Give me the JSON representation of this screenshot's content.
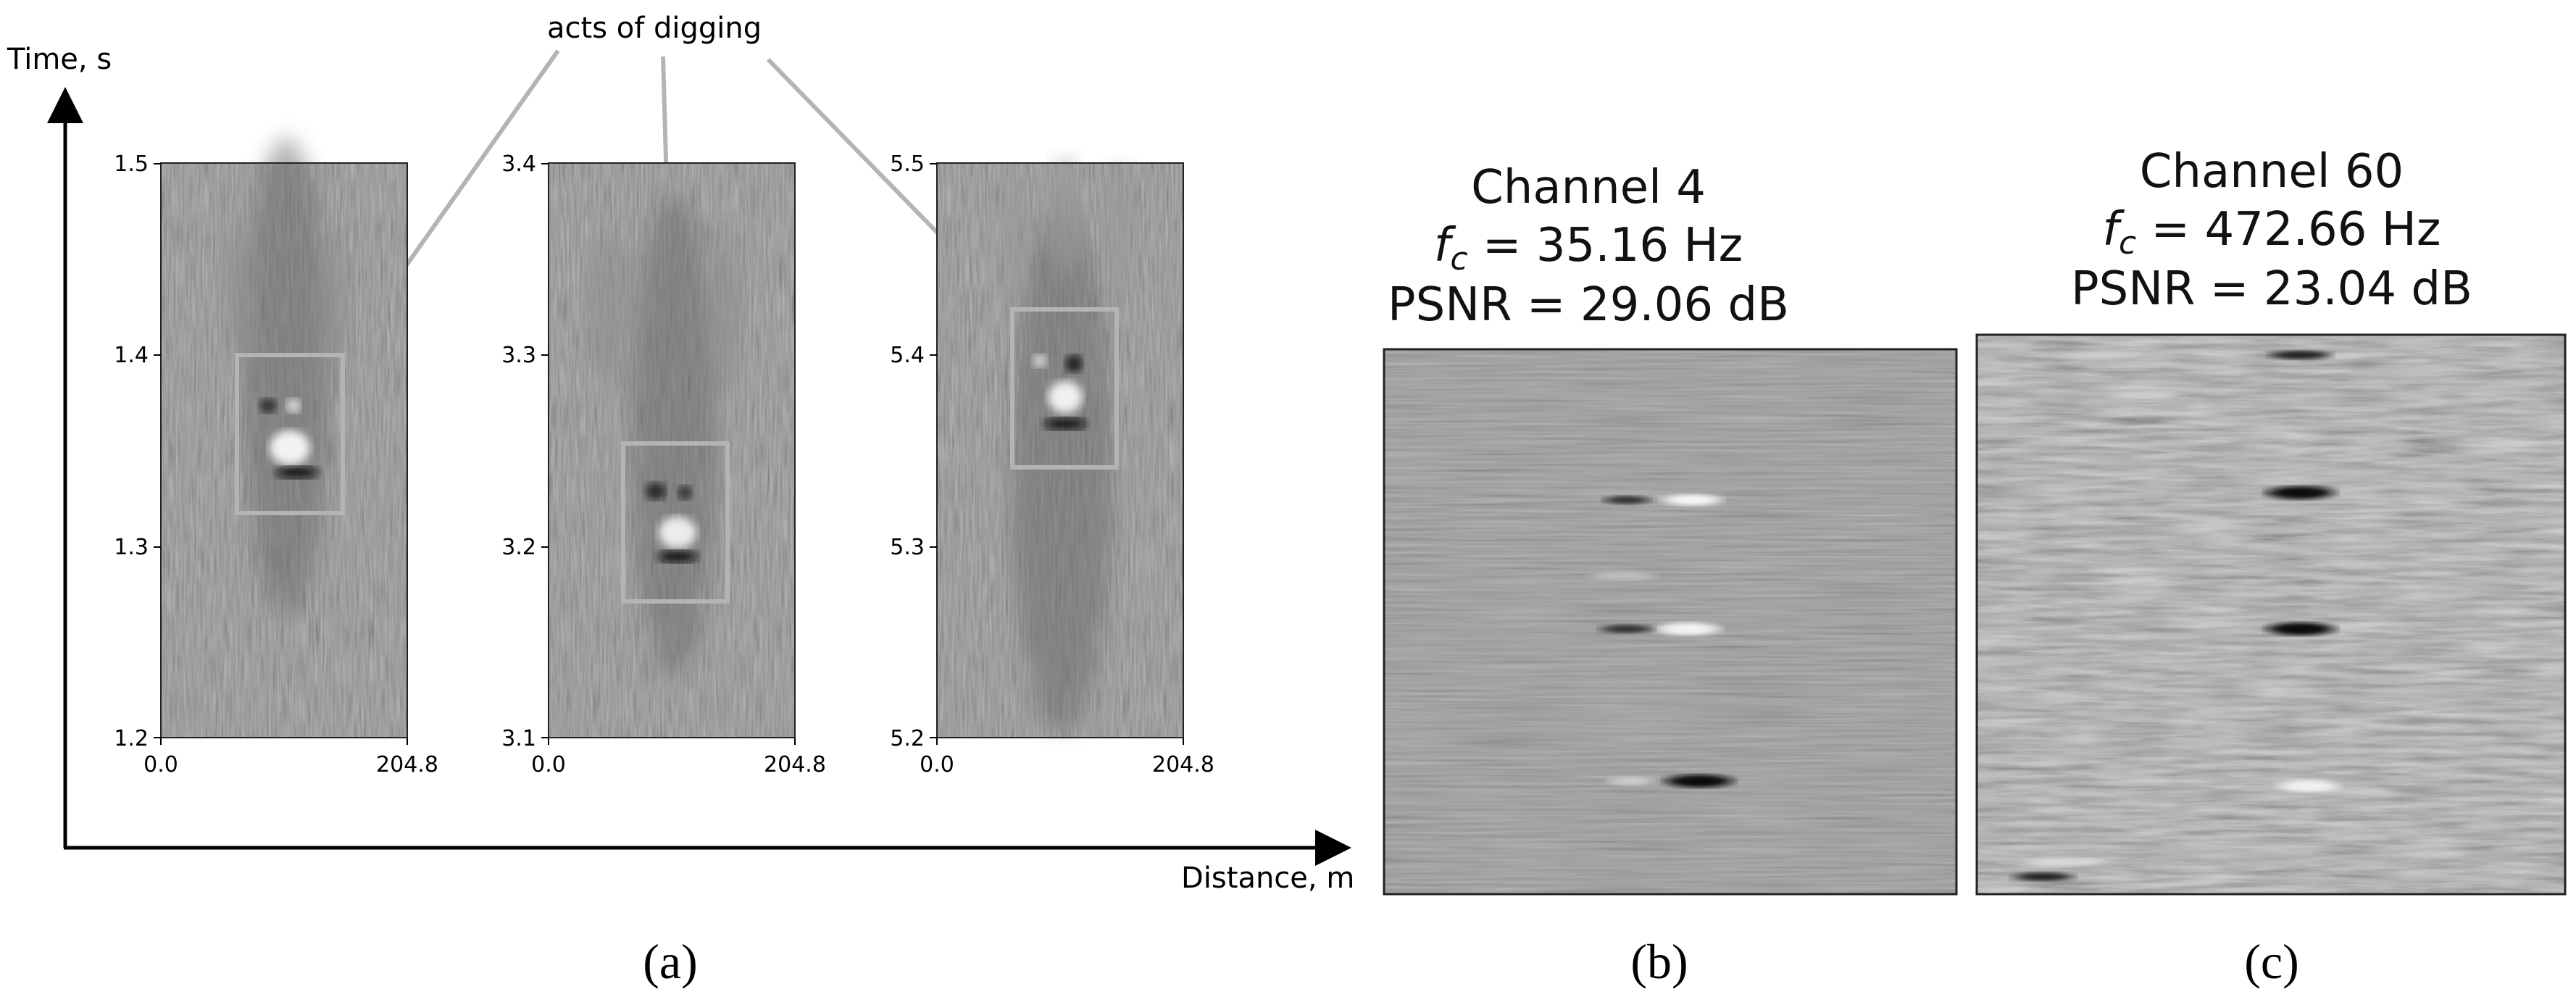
{
  "axes": {
    "y_label": "Time, s",
    "x_label": "Distance, m"
  },
  "annotation": "acts of digging",
  "panel_a": {
    "label": "(a)",
    "plots": [
      {
        "x_ticks": [
          "0.0",
          "204.8"
        ],
        "y_ticks": [
          "1.5",
          "1.4",
          "1.3",
          "1.2"
        ]
      },
      {
        "x_ticks": [
          "0.0",
          "204.8"
        ],
        "y_ticks": [
          "3.4",
          "3.3",
          "3.2",
          "3.1"
        ]
      },
      {
        "x_ticks": [
          "0.0",
          "204.8"
        ],
        "y_ticks": [
          "5.5",
          "5.4",
          "5.3",
          "5.2"
        ]
      }
    ]
  },
  "panel_b": {
    "label": "(b)",
    "title_line1": "Channel 4",
    "fc_symbol": "f",
    "fc_sub": "c",
    "fc_value": " = 35.16 Hz",
    "psnr": "PSNR = 29.06 dB"
  },
  "panel_c": {
    "label": "(c)",
    "title_line1": "Channel 60",
    "fc_symbol": "f",
    "fc_sub": "c",
    "fc_value": " = 472.66 Hz",
    "psnr": "PSNR = 23.04 dB"
  },
  "colors": {
    "axis": "#000000",
    "box": "#b4b4b4",
    "background_gray": "#7c7c7c"
  }
}
